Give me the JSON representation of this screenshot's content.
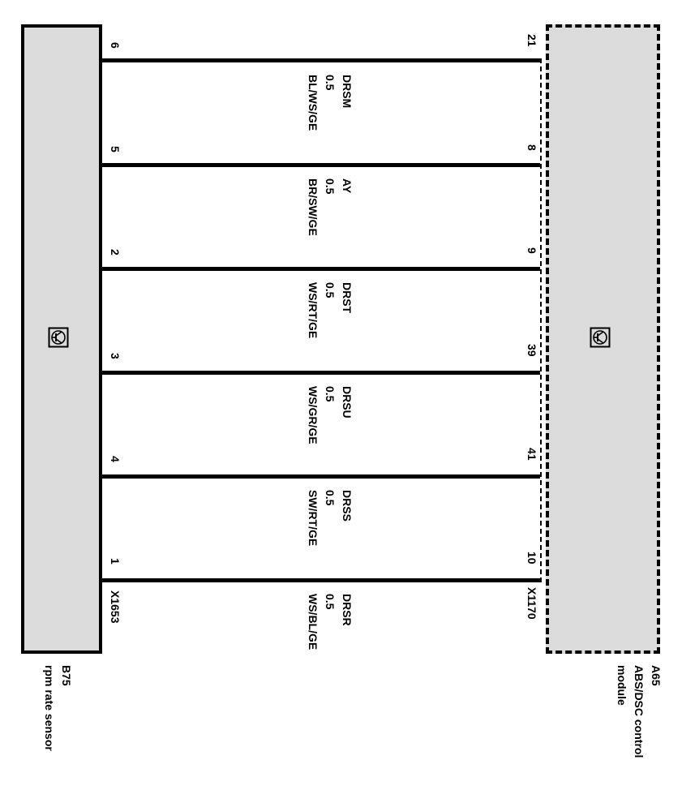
{
  "left_component": {
    "id": "B75",
    "name": "rpm rate sensor",
    "connector": "X1653",
    "icon": "transistor-icon"
  },
  "right_component": {
    "id": "A65",
    "name_line1": "ABS/DSC control",
    "name_line2": "module",
    "connector": "X1170",
    "icon": "transistor-icon"
  },
  "wires": [
    {
      "signal": "DRSM",
      "size": "0.5",
      "color": "BL/WS/GE",
      "left_pin": "6",
      "right_pin": "21"
    },
    {
      "signal": "AY",
      "size": "0.5",
      "color": "BR/SW/GE",
      "left_pin": "5",
      "right_pin": "8"
    },
    {
      "signal": "DRST",
      "size": "0.5",
      "color": "WS/RT/GE",
      "left_pin": "2",
      "right_pin": "9"
    },
    {
      "signal": "DRSU",
      "size": "0.5",
      "color": "WS/GR/GE",
      "left_pin": "3",
      "right_pin": "39"
    },
    {
      "signal": "DRSS",
      "size": "0.5",
      "color": "SW/RT/GE",
      "left_pin": "4",
      "right_pin": "41"
    },
    {
      "signal": "DRSR",
      "size": "0.5",
      "color": "WS/BL/GE",
      "left_pin": "1",
      "right_pin": "10"
    }
  ]
}
